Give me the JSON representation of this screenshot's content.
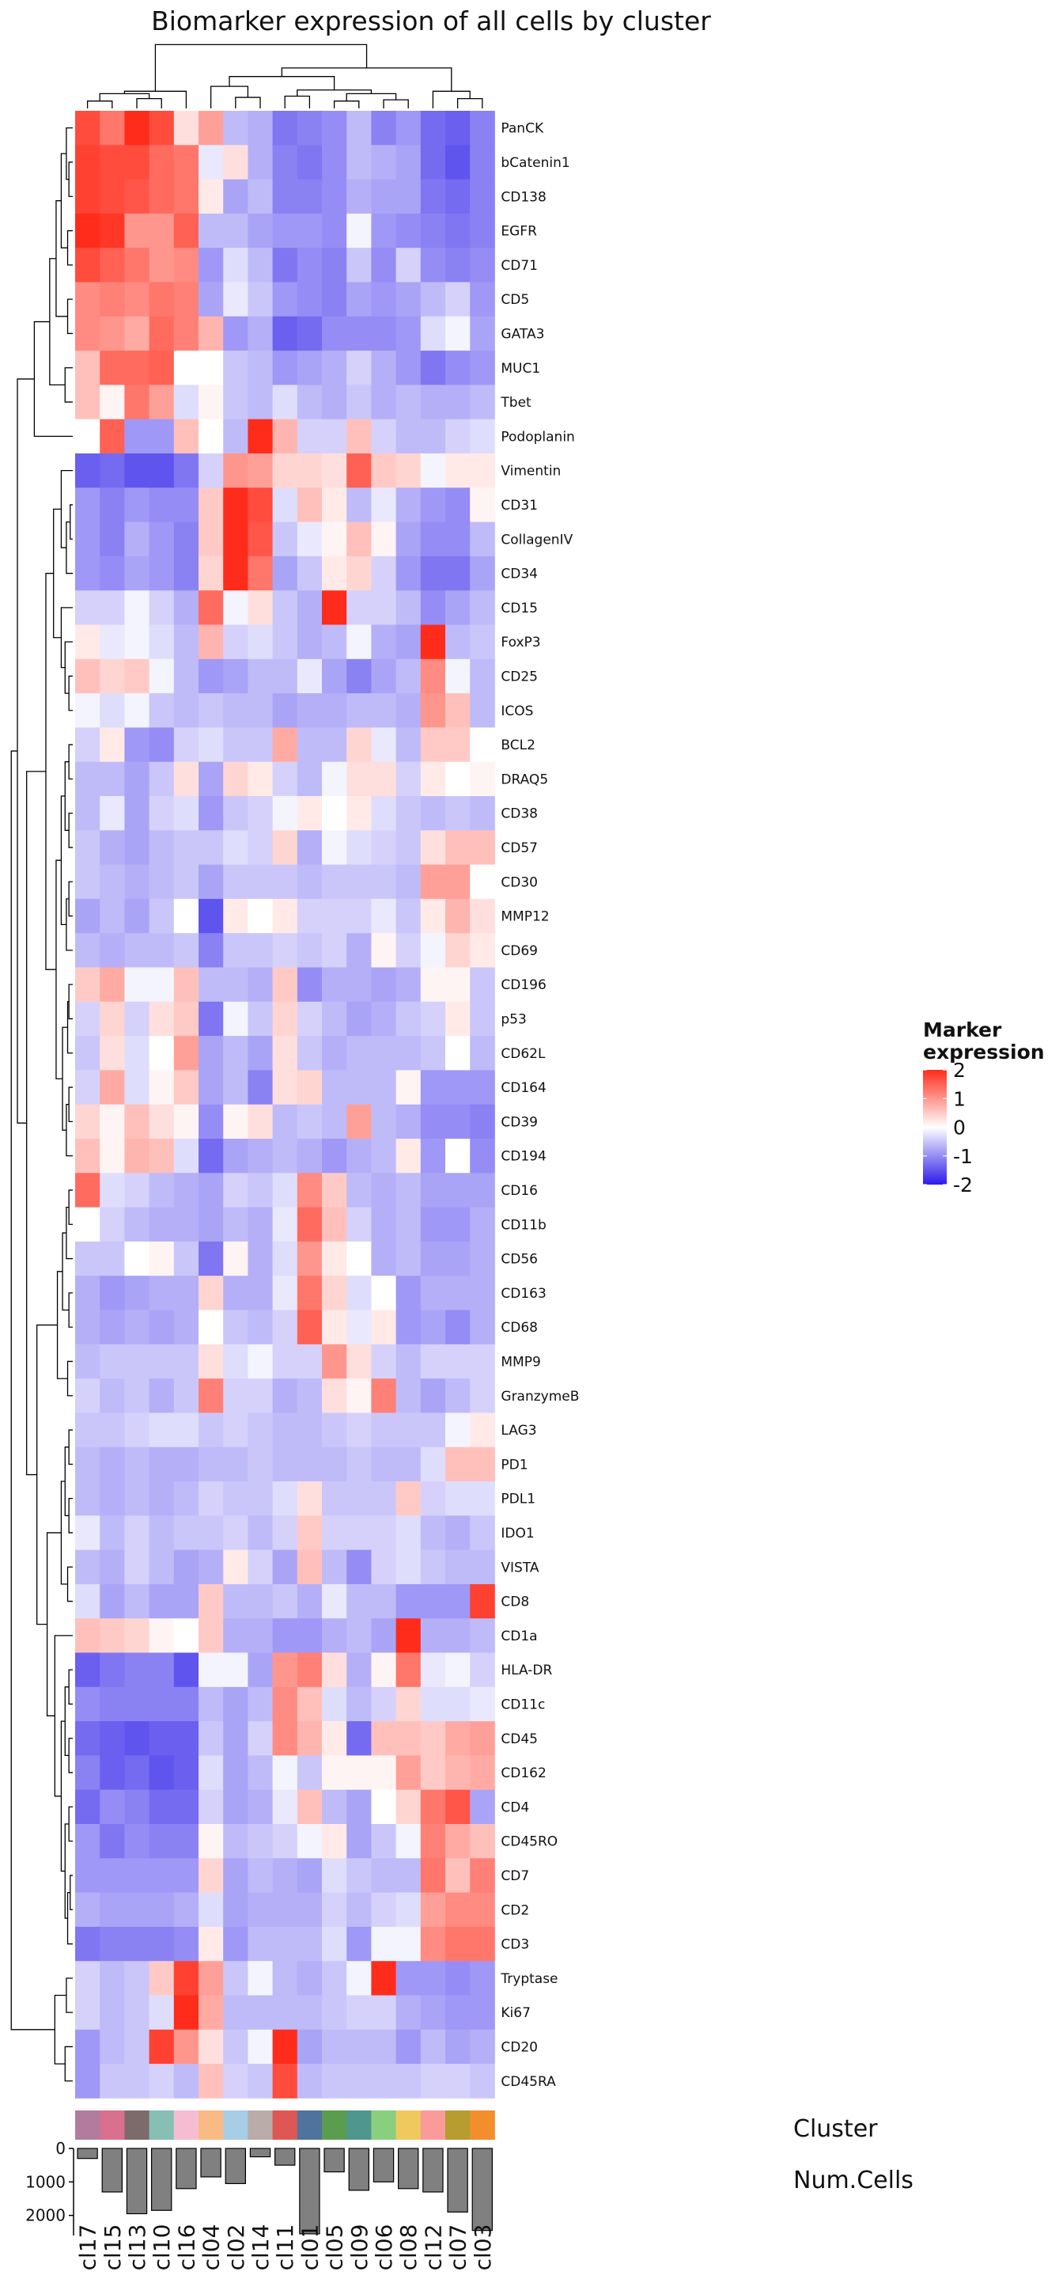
{
  "chart_data": {
    "type": "heatmap",
    "title": "Biomarker expression of all cells by cluster",
    "columns": [
      "cl17",
      "cl15",
      "cl13",
      "cl10",
      "cl16",
      "cl04",
      "cl02",
      "cl14",
      "cl11",
      "cl01",
      "cl05",
      "cl09",
      "cl06",
      "cl08",
      "cl12",
      "cl07",
      "cl03"
    ],
    "rows": [
      "PanCK",
      "bCatenin1",
      "CD138",
      "EGFR",
      "CD71",
      "CD5",
      "GATA3",
      "MUC1",
      "Tbet",
      "Podoplanin",
      "Vimentin",
      "CD31",
      "CollagenIV",
      "CD34",
      "CD15",
      "FoxP3",
      "CD25",
      "ICOS",
      "BCL2",
      "DRAQ5",
      "CD38",
      "CD57",
      "CD30",
      "MMP12",
      "CD69",
      "CD196",
      "p53",
      "CD62L",
      "CD164",
      "CD39",
      "CD194",
      "CD16",
      "CD11b",
      "CD56",
      "CD163",
      "CD68",
      "MMP9",
      "GranzymeB",
      "LAG3",
      "PD1",
      "PDL1",
      "IDO1",
      "VISTA",
      "CD8",
      "CD1a",
      "HLA-DR",
      "CD11c",
      "CD45",
      "CD162",
      "CD4",
      "CD45RO",
      "CD7",
      "CD2",
      "CD3",
      "Tryptase",
      "Ki67",
      "CD20",
      "CD45RA"
    ],
    "values": [
      [
        1.7,
        1.3,
        2.2,
        1.7,
        0.3,
        0.9,
        -0.6,
        -0.7,
        -1.2,
        -1.1,
        -1.0,
        -0.6,
        -1.1,
        -0.9,
        -1.3,
        -1.4,
        -1.1
      ],
      [
        1.8,
        1.7,
        1.7,
        1.4,
        1.3,
        -0.2,
        0.3,
        -0.7,
        -1.1,
        -1.2,
        -1.0,
        -0.6,
        -0.7,
        -0.8,
        -1.3,
        -1.5,
        -1.1
      ],
      [
        1.8,
        1.7,
        1.6,
        1.4,
        1.3,
        0.2,
        -0.8,
        -0.6,
        -1.1,
        -1.1,
        -1.0,
        -0.7,
        -0.8,
        -0.8,
        -1.2,
        -1.3,
        -1.1
      ],
      [
        2.0,
        1.9,
        1.0,
        1.0,
        1.5,
        -0.6,
        -0.6,
        -0.8,
        -0.9,
        -0.9,
        -1.0,
        -0.1,
        -0.9,
        -1.0,
        -1.1,
        -1.2,
        -1.1
      ],
      [
        1.7,
        1.5,
        1.3,
        1.0,
        1.1,
        -0.9,
        -0.3,
        -0.6,
        -1.2,
        -1.0,
        -1.1,
        -0.5,
        -1.0,
        -0.4,
        -1.0,
        -1.1,
        -1.0
      ],
      [
        1.1,
        1.2,
        1.1,
        1.3,
        1.2,
        -0.8,
        -0.2,
        -0.5,
        -0.9,
        -1.0,
        -1.1,
        -0.8,
        -0.9,
        -0.8,
        -0.6,
        -0.4,
        -0.9
      ],
      [
        1.1,
        1.0,
        0.8,
        1.4,
        1.2,
        0.7,
        -0.9,
        -0.7,
        -1.4,
        -1.3,
        -1.0,
        -1.0,
        -1.0,
        -0.9,
        -0.3,
        -0.1,
        -0.8
      ],
      [
        0.6,
        1.4,
        1.4,
        1.5,
        0.0,
        0.0,
        -0.5,
        -0.6,
        -0.9,
        -0.8,
        -0.7,
        -0.4,
        -0.7,
        -0.9,
        -1.2,
        -1.0,
        -0.9
      ],
      [
        0.6,
        0.1,
        1.3,
        0.9,
        -0.3,
        0.1,
        -0.5,
        -0.6,
        -0.3,
        -0.6,
        -0.7,
        -0.5,
        -0.7,
        -0.6,
        -0.7,
        -0.7,
        -0.6
      ],
      [
        0.0,
        1.5,
        -0.9,
        -0.9,
        0.6,
        0.0,
        -0.6,
        2.2,
        0.7,
        -0.4,
        -0.4,
        0.6,
        -0.4,
        -0.6,
        -0.6,
        -0.4,
        -0.3
      ],
      [
        -1.4,
        -1.3,
        -1.5,
        -1.5,
        -1.2,
        -0.4,
        1.0,
        0.9,
        0.4,
        0.4,
        0.3,
        1.5,
        0.5,
        0.4,
        -0.1,
        0.2,
        0.2
      ],
      [
        -0.9,
        -1.1,
        -0.9,
        -1.0,
        -1.0,
        0.5,
        2.2,
        1.7,
        -0.3,
        0.6,
        0.2,
        -0.6,
        -0.2,
        -0.7,
        -0.9,
        -1.0,
        0.1
      ],
      [
        -0.9,
        -1.1,
        -0.7,
        -0.9,
        -1.1,
        0.5,
        2.3,
        1.6,
        -0.5,
        -0.2,
        0.1,
        0.6,
        0.1,
        -0.8,
        -1.0,
        -1.0,
        -0.6
      ],
      [
        -0.9,
        -1.0,
        -0.8,
        -0.9,
        -1.1,
        0.4,
        2.3,
        1.3,
        -0.8,
        -0.5,
        0.2,
        0.4,
        -0.4,
        -0.9,
        -1.2,
        -1.2,
        -0.8
      ],
      [
        -0.4,
        -0.4,
        -0.1,
        -0.4,
        -0.7,
        1.4,
        -0.1,
        0.3,
        -0.5,
        -0.7,
        2.1,
        -0.4,
        -0.4,
        -0.6,
        -1.0,
        -0.8,
        -0.6
      ],
      [
        0.2,
        -0.2,
        -0.1,
        -0.3,
        -0.6,
        0.7,
        -0.4,
        -0.3,
        -0.5,
        -0.7,
        -0.6,
        -0.1,
        -0.7,
        -0.8,
        2.3,
        -0.6,
        -0.5
      ],
      [
        0.6,
        0.4,
        0.5,
        -0.1,
        -0.6,
        -0.9,
        -0.8,
        -0.6,
        -0.6,
        -0.2,
        -0.8,
        -1.1,
        -0.8,
        -0.6,
        1.1,
        -0.1,
        -0.6
      ],
      [
        -0.1,
        -0.3,
        -0.1,
        -0.5,
        -0.6,
        -0.5,
        -0.6,
        -0.6,
        -0.8,
        -0.7,
        -0.7,
        -0.6,
        -0.6,
        -0.7,
        1.0,
        0.6,
        -0.6
      ],
      [
        -0.4,
        0.2,
        -0.9,
        -1.0,
        -0.4,
        -0.3,
        -0.5,
        -0.5,
        0.8,
        -0.6,
        -0.6,
        0.4,
        -0.2,
        -0.6,
        0.5,
        0.5,
        0.0
      ],
      [
        -0.6,
        -0.6,
        -0.8,
        -0.5,
        0.3,
        -0.8,
        0.4,
        0.2,
        -0.4,
        -0.6,
        -0.1,
        0.3,
        0.3,
        -0.4,
        0.2,
        0.0,
        0.1
      ],
      [
        -0.6,
        -0.2,
        -0.8,
        -0.4,
        -0.3,
        -0.9,
        -0.5,
        -0.4,
        -0.1,
        0.2,
        0.0,
        0.2,
        -0.3,
        -0.5,
        -0.6,
        -0.5,
        -0.6
      ],
      [
        -0.5,
        -0.7,
        -0.8,
        -0.6,
        -0.5,
        -0.5,
        -0.3,
        -0.4,
        0.4,
        -0.7,
        -0.1,
        -0.3,
        -0.4,
        -0.5,
        0.3,
        0.6,
        0.6
      ],
      [
        -0.5,
        -0.6,
        -0.7,
        -0.6,
        -0.5,
        -0.8,
        -0.5,
        -0.5,
        -0.5,
        -0.6,
        -0.5,
        -0.5,
        -0.5,
        -0.6,
        0.9,
        0.9,
        0.0
      ],
      [
        -0.8,
        -0.6,
        -0.8,
        -0.5,
        0.0,
        -1.5,
        0.2,
        0.0,
        0.2,
        -0.4,
        -0.4,
        -0.4,
        -0.2,
        -0.5,
        0.2,
        0.7,
        0.3
      ],
      [
        -0.6,
        -0.7,
        -0.6,
        -0.6,
        -0.5,
        -1.1,
        -0.5,
        -0.5,
        -0.4,
        -0.5,
        -0.4,
        -0.7,
        0.1,
        -0.4,
        -0.1,
        0.4,
        0.2
      ],
      [
        0.5,
        0.8,
        -0.1,
        -0.1,
        0.6,
        -0.6,
        -0.6,
        -0.7,
        0.5,
        -1.0,
        -0.7,
        -0.7,
        -0.8,
        -0.7,
        0.1,
        0.1,
        -0.5
      ],
      [
        -0.4,
        0.4,
        -0.4,
        0.3,
        0.5,
        -1.2,
        -0.1,
        -0.5,
        0.4,
        -0.4,
        -0.6,
        -0.8,
        -0.7,
        -0.5,
        -0.4,
        0.2,
        -0.5
      ],
      [
        -0.5,
        0.3,
        -0.3,
        0.0,
        0.9,
        -0.8,
        -0.6,
        -0.8,
        0.3,
        -0.5,
        -0.7,
        -0.6,
        -0.6,
        -0.6,
        -0.5,
        0.0,
        -0.6
      ],
      [
        -0.4,
        0.8,
        -0.3,
        0.1,
        0.5,
        -0.8,
        -0.6,
        -1.1,
        0.3,
        0.4,
        -0.6,
        -0.6,
        -0.6,
        0.1,
        -0.9,
        -0.9,
        -0.9
      ],
      [
        0.4,
        0.1,
        0.6,
        0.3,
        0.1,
        -1.0,
        0.1,
        0.3,
        -0.6,
        -0.5,
        -0.6,
        0.9,
        -0.6,
        -0.7,
        -1.0,
        -1.0,
        -1.1
      ],
      [
        0.6,
        0.1,
        0.7,
        0.6,
        -0.3,
        -1.3,
        -0.8,
        -0.7,
        -0.6,
        -0.7,
        -0.9,
        -0.7,
        -0.6,
        0.2,
        -0.9,
        0.0,
        -1.0
      ],
      [
        1.4,
        -0.3,
        -0.4,
        -0.6,
        -0.7,
        -0.8,
        -0.4,
        -0.5,
        -0.3,
        1.1,
        0.5,
        -0.6,
        -0.7,
        -0.6,
        -0.8,
        -0.8,
        -0.8
      ],
      [
        0.0,
        -0.4,
        -0.6,
        -0.7,
        -0.7,
        -0.8,
        -0.6,
        -0.7,
        -0.2,
        1.4,
        0.6,
        -0.4,
        -0.7,
        -0.6,
        -0.9,
        -0.9,
        -0.7
      ],
      [
        -0.5,
        -0.5,
        0.0,
        0.1,
        -0.5,
        -1.2,
        0.1,
        -0.7,
        -0.3,
        1.0,
        0.2,
        0.0,
        -0.7,
        -0.6,
        -0.8,
        -0.8,
        -0.7
      ],
      [
        -0.7,
        -0.9,
        -0.8,
        -0.7,
        -0.7,
        0.4,
        -0.7,
        -0.7,
        -0.2,
        1.3,
        0.4,
        -0.3,
        0.0,
        -0.9,
        -0.7,
        -0.7,
        -0.7
      ],
      [
        -0.7,
        -0.8,
        -0.7,
        -0.8,
        -0.7,
        0.0,
        -0.5,
        -0.6,
        -0.4,
        1.5,
        0.2,
        -0.2,
        0.2,
        -0.9,
        -0.8,
        -1.0,
        -0.7
      ],
      [
        -0.6,
        -0.5,
        -0.5,
        -0.5,
        -0.5,
        0.3,
        -0.3,
        -0.1,
        -0.4,
        -0.4,
        1.0,
        0.3,
        -0.4,
        -0.6,
        -0.4,
        -0.4,
        -0.4
      ],
      [
        -0.4,
        -0.6,
        -0.5,
        -0.7,
        -0.5,
        1.2,
        -0.4,
        -0.4,
        -0.7,
        -0.6,
        0.3,
        0.1,
        1.2,
        -0.6,
        -0.8,
        -0.6,
        -0.4
      ],
      [
        -0.5,
        -0.5,
        -0.4,
        -0.3,
        -0.3,
        -0.5,
        -0.4,
        -0.5,
        -0.6,
        -0.6,
        -0.5,
        -0.4,
        -0.5,
        -0.5,
        -0.5,
        -0.1,
        0.2
      ],
      [
        -0.6,
        -0.7,
        -0.6,
        -0.7,
        -0.7,
        -0.6,
        -0.6,
        -0.5,
        -0.6,
        -0.6,
        -0.6,
        -0.5,
        -0.6,
        -0.6,
        -0.3,
        0.6,
        0.6
      ],
      [
        -0.6,
        -0.7,
        -0.6,
        -0.7,
        -0.6,
        -0.4,
        -0.5,
        -0.5,
        -0.3,
        0.3,
        -0.5,
        -0.5,
        -0.5,
        0.5,
        -0.4,
        -0.3,
        -0.3
      ],
      [
        -0.2,
        -0.6,
        -0.4,
        -0.6,
        -0.5,
        -0.5,
        -0.4,
        -0.6,
        -0.4,
        0.5,
        -0.4,
        -0.4,
        -0.4,
        -0.3,
        -0.6,
        -0.7,
        -0.5
      ],
      [
        -0.6,
        -0.7,
        -0.4,
        -0.6,
        -0.8,
        -0.7,
        0.2,
        -0.4,
        -0.8,
        0.6,
        -0.6,
        -1.0,
        -0.4,
        -0.3,
        -0.5,
        -0.6,
        -0.6
      ],
      [
        -0.3,
        -0.8,
        -0.6,
        -0.8,
        -0.8,
        0.5,
        -0.6,
        -0.6,
        -0.5,
        -0.7,
        -0.2,
        -0.6,
        -0.6,
        -0.9,
        -0.9,
        -0.9,
        1.8
      ],
      [
        0.6,
        0.5,
        0.4,
        0.1,
        0.0,
        0.5,
        -0.7,
        -0.7,
        -0.9,
        -0.9,
        -0.7,
        -0.6,
        -0.8,
        2.3,
        -0.7,
        -0.7,
        -0.6
      ],
      [
        -1.4,
        -1.2,
        -1.1,
        -1.1,
        -1.5,
        -0.1,
        -0.1,
        -0.8,
        1.0,
        1.2,
        0.3,
        -0.7,
        0.1,
        1.3,
        -0.2,
        -0.1,
        -0.4
      ],
      [
        -1.0,
        -1.1,
        -1.1,
        -1.1,
        -1.1,
        -0.6,
        -0.8,
        -0.6,
        1.1,
        0.6,
        -0.3,
        -0.6,
        -0.4,
        0.4,
        -0.3,
        -0.3,
        -0.2
      ],
      [
        -1.3,
        -1.4,
        -1.5,
        -1.4,
        -1.4,
        -0.5,
        -0.8,
        -0.4,
        1.1,
        0.7,
        0.2,
        -1.3,
        0.6,
        0.6,
        0.5,
        0.8,
        0.9
      ],
      [
        -1.1,
        -1.4,
        -1.3,
        -1.5,
        -1.4,
        -0.3,
        -0.8,
        -0.6,
        -0.1,
        -0.5,
        0.1,
        0.1,
        0.1,
        0.9,
        0.5,
        0.7,
        0.8
      ],
      [
        -1.3,
        -1.0,
        -1.1,
        -1.3,
        -1.3,
        -0.4,
        -0.8,
        -0.7,
        -0.2,
        0.6,
        -0.6,
        -0.8,
        0.0,
        0.4,
        1.3,
        1.6,
        -0.8
      ],
      [
        -0.9,
        -1.2,
        -1.0,
        -1.1,
        -1.1,
        0.1,
        -0.6,
        -0.5,
        -0.4,
        -0.1,
        0.2,
        -0.8,
        -0.5,
        -0.1,
        1.2,
        0.8,
        0.6
      ],
      [
        -0.9,
        -0.9,
        -0.9,
        -0.9,
        -0.9,
        0.4,
        -0.8,
        -0.6,
        -0.7,
        -0.8,
        -0.3,
        -0.5,
        -0.6,
        -0.6,
        1.3,
        0.6,
        1.2
      ],
      [
        -0.7,
        -0.8,
        -0.8,
        -0.8,
        -0.7,
        -0.3,
        -0.8,
        -0.7,
        -0.7,
        -0.7,
        -0.4,
        -0.6,
        -0.4,
        -0.3,
        0.9,
        1.1,
        1.1
      ],
      [
        -1.2,
        -1.1,
        -1.1,
        -1.1,
        -1.0,
        0.2,
        -0.9,
        -0.6,
        -0.6,
        -0.6,
        -0.3,
        -0.9,
        -0.1,
        -0.1,
        1.1,
        1.3,
        1.3
      ],
      [
        -0.4,
        -0.6,
        -0.5,
        0.5,
        1.8,
        0.9,
        -0.5,
        -0.1,
        -0.6,
        -0.7,
        -0.5,
        -0.1,
        2.3,
        -0.9,
        -0.9,
        -1.0,
        -0.9
      ],
      [
        -0.4,
        -0.6,
        -0.5,
        -0.3,
        2.0,
        0.8,
        -0.6,
        -0.6,
        -0.6,
        -0.6,
        -0.5,
        -0.4,
        -0.4,
        -0.7,
        -0.8,
        -0.9,
        -0.9
      ],
      [
        -0.9,
        -0.6,
        -0.5,
        1.8,
        1.0,
        0.3,
        -0.5,
        -0.1,
        2.3,
        -0.8,
        -0.6,
        -0.6,
        -0.6,
        -0.9,
        -0.6,
        -0.8,
        -0.7
      ],
      [
        -0.9,
        -0.5,
        -0.5,
        -0.4,
        -0.6,
        0.6,
        -0.4,
        -0.5,
        1.7,
        -0.6,
        -0.5,
        -0.5,
        -0.5,
        -0.5,
        -0.4,
        -0.4,
        -0.5
      ]
    ],
    "colorbar": {
      "title": "Marker expression",
      "ticks": [
        2,
        1,
        0,
        -1,
        -2
      ],
      "range": [
        -2,
        2
      ],
      "low_color": "#2B1BEA",
      "mid_color": "#FFFFFF",
      "high_color": "#FF2C1B"
    },
    "cluster_annotation": {
      "label": "Cluster",
      "colors": [
        "#B27C9E",
        "#D9708F",
        "#7D6B6B",
        "#87BFB5",
        "#F5BCD2",
        "#F9BB83",
        "#A7CDE7",
        "#BAACA8",
        "#DE5755",
        "#50739E",
        "#5B9D4E",
        "#4F968E",
        "#89CF7D",
        "#F0C95E",
        "#FA9B9B",
        "#B79C30",
        "#F28F2C"
      ]
    },
    "num_cells": {
      "label": "Num.Cells",
      "axis_ticks": [
        0,
        1000,
        2000
      ],
      "ylim": [
        0,
        2600
      ],
      "values": [
        300,
        1300,
        1950,
        1850,
        1200,
        850,
        1050,
        250,
        500,
        2550,
        700,
        1250,
        1000,
        1200,
        1300,
        1900,
        2450
      ]
    },
    "dendrogram": {
      "rows": "left",
      "columns": "top"
    }
  }
}
